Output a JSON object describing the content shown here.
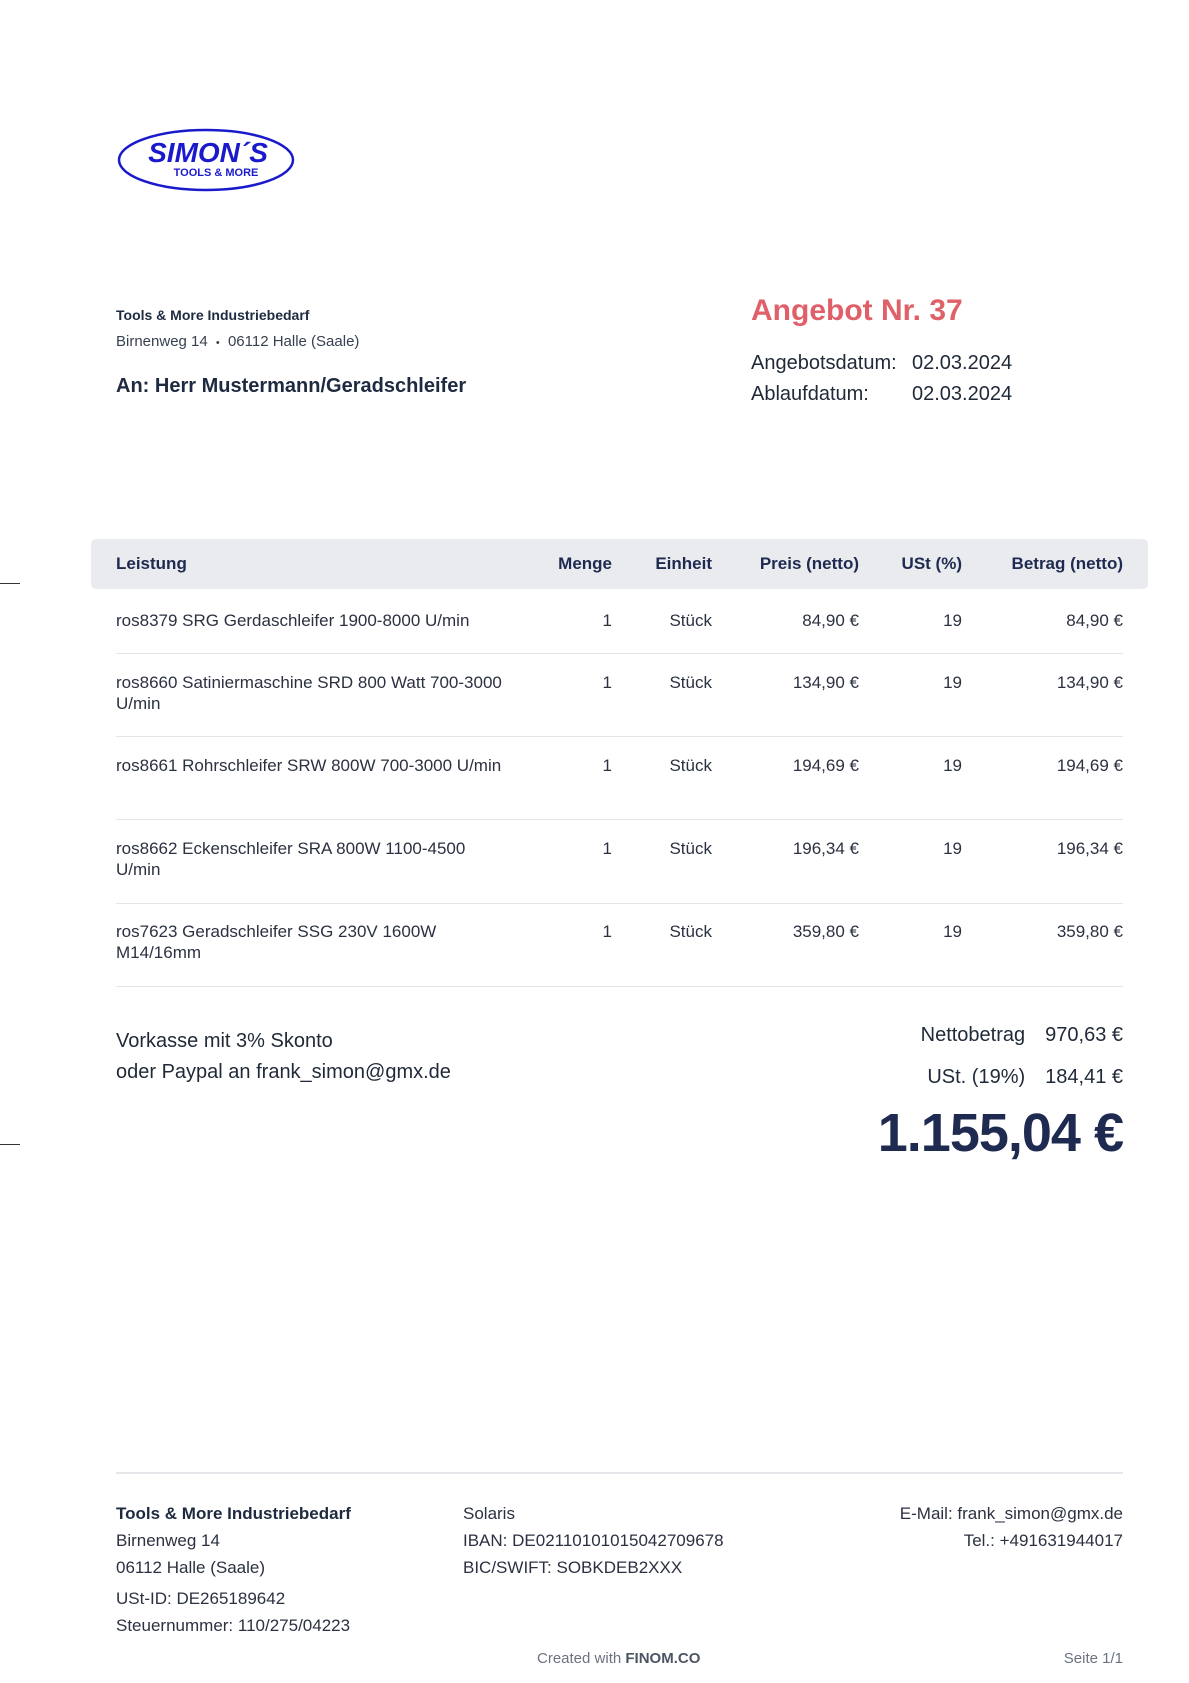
{
  "logo": {
    "text_main": "SIMON´S",
    "text_sub": "TOOLS & MORE",
    "color": "#1a1acc"
  },
  "sender": {
    "name": "Tools & More Industriebedarf",
    "street": "Birnenweg 14",
    "separator": "•",
    "city": "06112 Halle (Saale)"
  },
  "recipient": "An: Herr Mustermann/Geradschleifer",
  "offer": {
    "title": "Angebot Nr. 37",
    "date_label": "Angebotsdatum:",
    "date_value": "02.03.2024",
    "expiry_label": "Ablaufdatum:",
    "expiry_value": "02.03.2024",
    "accent_color": "#e0606a"
  },
  "table": {
    "headers": {
      "service": "Leistung",
      "qty": "Menge",
      "unit": "Einheit",
      "price": "Preis (netto)",
      "vat": "USt (%)",
      "amount": "Betrag (netto)"
    },
    "rows": [
      {
        "service": "ros8379 SRG Gerdaschleifer 1900-8000 U/min",
        "qty": "1",
        "unit": "Stück",
        "price": "84,90 €",
        "vat": "19",
        "amount": "84,90 €"
      },
      {
        "service": "ros8660 Satiniermaschine SRD 800 Watt 700-3000 U/min",
        "qty": "1",
        "unit": "Stück",
        "price": "134,90 €",
        "vat": "19",
        "amount": "134,90 €"
      },
      {
        "service": "ros8661 Rohrschleifer SRW 800W 700-3000 U/min",
        "qty": "1",
        "unit": "Stück",
        "price": "194,69 €",
        "vat": "19",
        "amount": "194,69 €"
      },
      {
        "service": "ros8662 Eckenschleifer SRA 800W 1100-4500 U/min",
        "qty": "1",
        "unit": "Stück",
        "price": "196,34 €",
        "vat": "19",
        "amount": "196,34 €"
      },
      {
        "service": "ros7623 Geradschleifer SSG 230V 1600W M14/16mm",
        "qty": "1",
        "unit": "Stück",
        "price": "359,80 €",
        "vat": "19",
        "amount": "359,80 €"
      }
    ]
  },
  "payment": {
    "line1": "Vorkasse mit 3% Skonto",
    "line2": "oder Paypal an frank_simon@gmx.de"
  },
  "totals": {
    "net_label": "Nettobetrag",
    "net_value": "970,63 €",
    "vat_label": "USt. (19%)",
    "vat_value": "184,41 €",
    "grand_total": "1.155,04 €"
  },
  "footer": {
    "company": "Tools & More Industriebedarf",
    "street": "Birnenweg 14",
    "city": "06112 Halle (Saale)",
    "vat_id": "USt-ID: DE265189642",
    "tax_no": "Steuernummer: 110/275/04223",
    "bank": "Solaris",
    "iban": "IBAN: DE02110101015042709678",
    "bic": "BIC/SWIFT: SOBKDEB2XXX",
    "email": "E-Mail: frank_simon@gmx.de",
    "phone": "Tel.: +491631944017",
    "credit_prefix": "Created with",
    "credit_brand": "FINOM.CO",
    "page": "Seite 1/1"
  }
}
